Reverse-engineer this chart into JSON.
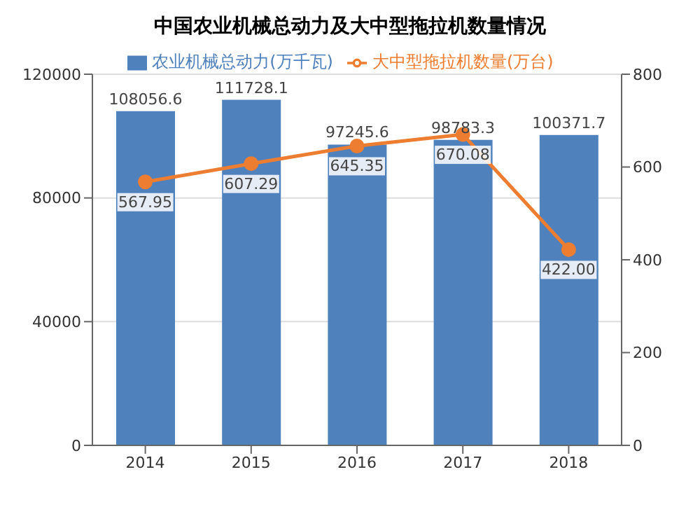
{
  "chart_data": {
    "type": "bar",
    "title": "中国农业机械总动力及大中型拖拉机数量情况",
    "categories": [
      "2014",
      "2015",
      "2016",
      "2017",
      "2018"
    ],
    "series": [
      {
        "name": "农业机械总动力(万千瓦)",
        "color": "#4f81bd",
        "values": [
          108056.6,
          111728.1,
          97245.6,
          98783.3,
          100371.7
        ]
      },
      {
        "name": "大中型拖拉机数量(万台)",
        "type": "line",
        "axis": "y2",
        "color": "#ed7d31",
        "values": [
          567.95,
          607.29,
          645.35,
          670.08,
          422.0
        ],
        "value_labels": [
          "567.95",
          "607.29",
          "645.35",
          "670.08",
          "422.00"
        ]
      }
    ],
    "ylim": [
      0,
      120000
    ],
    "yticks": [
      0,
      40000,
      80000,
      120000
    ],
    "y2lim": [
      0,
      800
    ],
    "y2ticks": [
      0,
      200,
      400,
      600,
      800
    ],
    "grid": "y",
    "legend": "top",
    "marker": "circle",
    "data_labels": true
  }
}
